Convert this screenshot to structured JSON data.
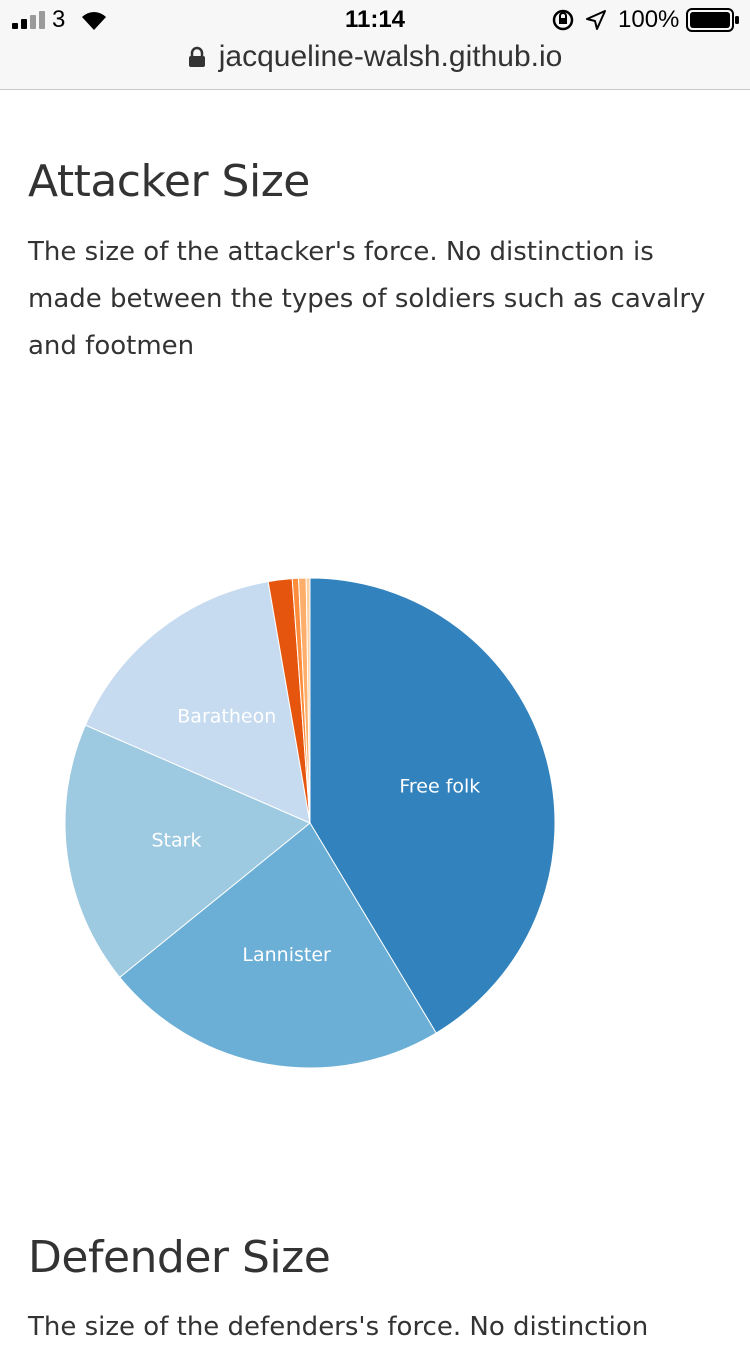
{
  "status_bar": {
    "carrier": "3",
    "time": "11:14",
    "battery_percent": "100%",
    "battery_level": 1.0,
    "icons": [
      "signal-icon",
      "wifi-icon",
      "orientation-lock-icon",
      "location-icon",
      "battery-icon"
    ]
  },
  "browser": {
    "url": "jacqueline-walsh.github.io"
  },
  "sections": {
    "attacker": {
      "title": "Attacker Size",
      "description": "The size of the attacker's force. No distinction is made between the types of soldiers such as cavalry and footmen"
    },
    "defender": {
      "title": "Defender Size",
      "description": "The size of the defenders's force. No distinction"
    }
  },
  "chart_data": {
    "type": "pie",
    "title": "",
    "slices": [
      {
        "label": "Free folk",
        "value": 100000,
        "color": "#3182bd",
        "label_color": "#ffffff"
      },
      {
        "label": "Lannister",
        "value": 55000,
        "color": "#6baed6",
        "label_color": "#ffffff"
      },
      {
        "label": "Stark",
        "value": 42000,
        "color": "#9ecae1",
        "label_color": "#ffffff"
      },
      {
        "label": "Baratheon",
        "value": 38000,
        "color": "#c6dbef",
        "label_color": "#ffffff"
      },
      {
        "label": "",
        "value": 3800,
        "color": "#e6550d"
      },
      {
        "label": "",
        "value": 1000,
        "color": "#fd8d3c"
      },
      {
        "label": "",
        "value": 1200,
        "color": "#fdae6b"
      },
      {
        "label": "",
        "value": 600,
        "color": "#fdd0a2"
      }
    ]
  }
}
